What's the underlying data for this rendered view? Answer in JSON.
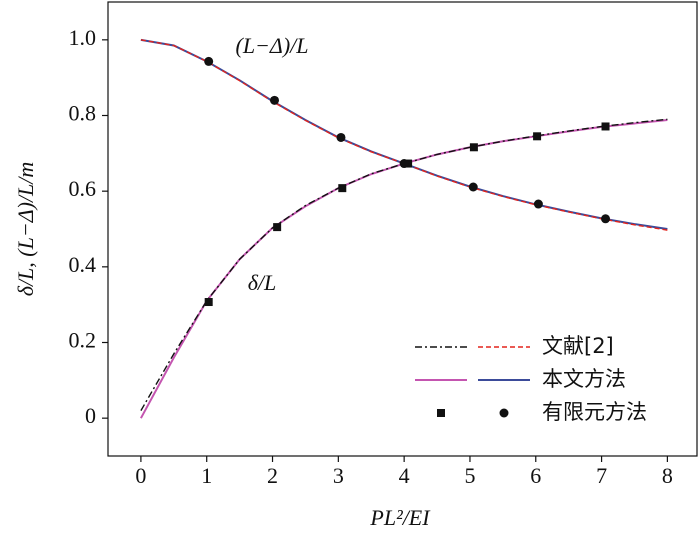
{
  "chart_data": {
    "type": "line",
    "xlabel": "PL²/EI",
    "ylabel": "δ/L, (L−Δ)/L/m",
    "xlim": [
      -0.5,
      8.45
    ],
    "ylim": [
      -0.1,
      1.1
    ],
    "xticks": [
      0,
      1,
      2,
      3,
      4,
      5,
      6,
      7,
      8
    ],
    "yticks": [
      0,
      0.2,
      0.4,
      0.6,
      0.8,
      {
        "value": 1,
        "label": "1.0"
      }
    ],
    "legend": "lower right",
    "annotations": [
      "(L−Δ)/L",
      "δ/L"
    ],
    "x": [
      0,
      0.5,
      1,
      1.5,
      2,
      2.5,
      3,
      3.5,
      4,
      4.5,
      5,
      5.5,
      6,
      6.5,
      7,
      7.5,
      8
    ],
    "series": [
      {
        "name": "文献[2]",
        "curves": [
          {
            "color": "#111111",
            "dash": "7 3 2 3",
            "values": [
              0.02,
              0.17,
              0.31,
              0.42,
              0.503,
              0.562,
              0.608,
              0.646,
              0.673,
              0.697,
              0.716,
              0.732,
              0.746,
              0.759,
              0.771,
              0.781,
              0.79
            ]
          },
          {
            "color": "#e3231c",
            "dash": "5 3",
            "values": [
              1.0,
              0.985,
              0.943,
              0.892,
              0.837,
              0.787,
              0.741,
              0.704,
              0.673,
              0.64,
              0.611,
              0.586,
              0.564,
              0.545,
              0.527,
              0.511,
              0.497
            ]
          }
        ]
      },
      {
        "name": "本文方法",
        "curves": [
          {
            "color": "#c455b0",
            "dash": "",
            "values": [
              0,
              0.16,
              0.31,
              0.42,
              0.503,
              0.56,
              0.608,
              0.645,
              0.673,
              0.697,
              0.716,
              0.732,
              0.745,
              0.758,
              0.77,
              0.779,
              0.788
            ]
          },
          {
            "color": "#3b4b9a",
            "dash": "",
            "values": [
              1.0,
              0.985,
              0.943,
              0.893,
              0.838,
              0.788,
              0.742,
              0.705,
              0.673,
              0.641,
              0.612,
              0.587,
              0.565,
              0.546,
              0.528,
              0.513,
              0.5
            ]
          }
        ]
      },
      {
        "name": "有限元方法",
        "points": [
          {
            "marker": "square",
            "color": "#111111",
            "x": [
              1.03,
              2.07,
              3.06,
              4.06,
              5.06,
              6.02,
              7.06
            ],
            "values": [
              0.307,
              0.505,
              0.608,
              0.673,
              0.716,
              0.745,
              0.771
            ]
          },
          {
            "marker": "circle",
            "color": "#111111",
            "x": [
              1.03,
              2.03,
              3.04,
              4.0,
              5.05,
              6.04,
              7.06
            ],
            "values": [
              0.943,
              0.84,
              0.742,
              0.673,
              0.611,
              0.566,
              0.527
            ]
          }
        ]
      }
    ]
  }
}
